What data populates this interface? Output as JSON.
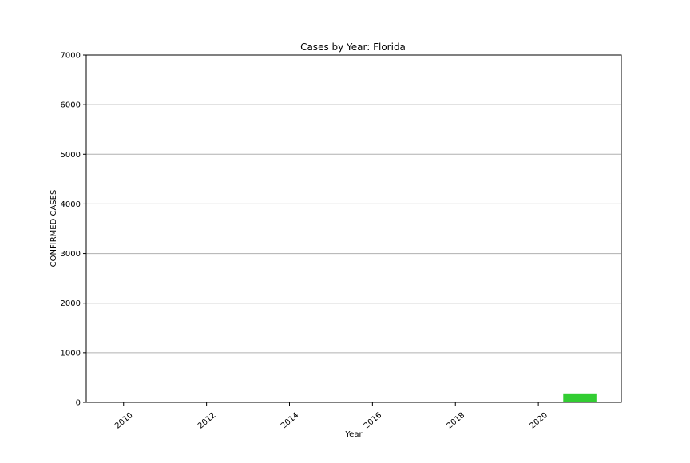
{
  "chart_data": {
    "type": "bar",
    "title": "Cases by Year: Florida",
    "xlabel": "Year",
    "ylabel": "CONFIRMED CASES",
    "x": [
      2010,
      2011,
      2012,
      2013,
      2014,
      2015,
      2016,
      2017,
      2018,
      2019,
      2020,
      2021
    ],
    "values": [
      0,
      0,
      0,
      0,
      0,
      0,
      0,
      0,
      0,
      0,
      0,
      180
    ],
    "xlim": [
      2009.1,
      2022.0
    ],
    "ylim": [
      0,
      7000
    ],
    "xticks": [
      "2010",
      "2012",
      "2014",
      "2016",
      "2018",
      "2020"
    ],
    "yticks": [
      "0",
      "1000",
      "2000",
      "3000",
      "4000",
      "5000",
      "6000",
      "7000"
    ],
    "grid": "horizontal",
    "bar_color": "#32cd32",
    "grid_color": "#b0b0b0"
  }
}
